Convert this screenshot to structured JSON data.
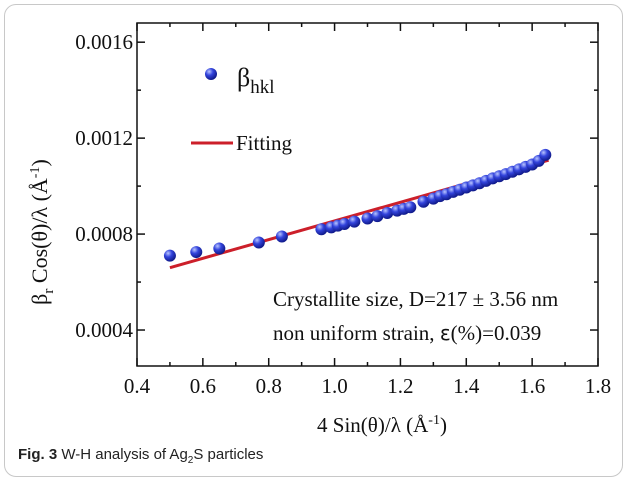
{
  "caption": {
    "label": "Fig. 3",
    "text_before": "W-H analysis of Ag",
    "subscript": "2",
    "text_after": "S particles"
  },
  "chart_data": {
    "type": "scatter",
    "xlabel_main": "4 Sin(θ)/λ (Å",
    "xlabel_sup": "-1",
    "xlabel_end": ")",
    "ylabel_base": "β",
    "ylabel_sub": "r",
    "ylabel_main": " Cos(θ)/λ (Å",
    "ylabel_sup": "-1",
    "ylabel_end": ")",
    "xlim": [
      0.4,
      1.8
    ],
    "ylim": [
      0.00025,
      0.00168
    ],
    "xticks": [
      0.4,
      0.6,
      0.8,
      1.0,
      1.2,
      1.4,
      1.6,
      1.8
    ],
    "xtick_labels": [
      "0.4",
      "0.6",
      "0.8",
      "1.0",
      "1.2",
      "1.4",
      "1.6",
      "1.8"
    ],
    "yticks": [
      0.0004,
      0.0008,
      0.0012,
      0.0016
    ],
    "ytick_labels": [
      "0.0004",
      "0.0008",
      "0.0012",
      "0.0016"
    ],
    "series": [
      {
        "name_base": "β",
        "name_sub": "hkl",
        "type": "scatter",
        "color": "#2233cc",
        "x": [
          0.5,
          0.58,
          0.65,
          0.77,
          0.84,
          0.96,
          0.99,
          1.01,
          1.03,
          1.06,
          1.1,
          1.13,
          1.16,
          1.19,
          1.21,
          1.23,
          1.27,
          1.3,
          1.32,
          1.34,
          1.36,
          1.38,
          1.4,
          1.42,
          1.44,
          1.46,
          1.48,
          1.5,
          1.52,
          1.54,
          1.56,
          1.58,
          1.6,
          1.62,
          1.64
        ],
        "y": [
          0.00071,
          0.000725,
          0.00074,
          0.000765,
          0.00079,
          0.00082,
          0.000828,
          0.000835,
          0.000842,
          0.000852,
          0.000865,
          0.000875,
          0.000888,
          0.000898,
          0.000905,
          0.000912,
          0.000935,
          0.000948,
          0.000958,
          0.000966,
          0.000976,
          0.000985,
          0.000994,
          0.001003,
          0.001012,
          0.001022,
          0.001032,
          0.001041,
          0.00105,
          0.00106,
          0.00107,
          0.00108,
          0.00109,
          0.001105,
          0.00113
        ]
      },
      {
        "name": "Fitting",
        "type": "line",
        "color": "#cc1f2a",
        "x": [
          0.5,
          1.65
        ],
        "y": [
          0.00066,
          0.001108
        ]
      }
    ],
    "annotations": [
      "Crystallite size, D=217 ± 3.56 nm",
      "non uniform strain, ",
      "ε",
      "(%)=0.039"
    ]
  }
}
